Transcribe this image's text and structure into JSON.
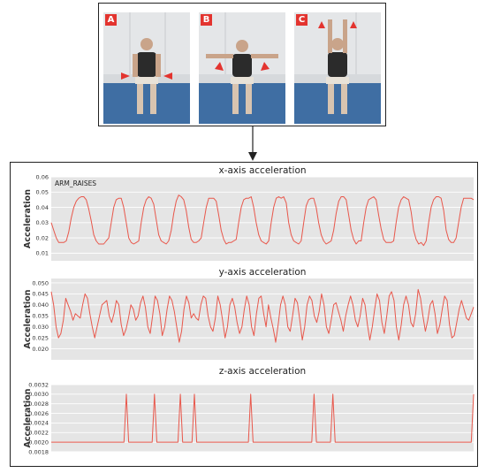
{
  "panels": [
    {
      "label": "A",
      "motion": "arms down"
    },
    {
      "label": "B",
      "motion": "arms sideways"
    },
    {
      "label": "C",
      "motion": "arms up"
    }
  ],
  "colors": {
    "line": "#e8574b",
    "plot_bg": "#e5e5e5",
    "grid": "#ffffff",
    "badge": "#e3342f"
  },
  "chart_data": [
    {
      "type": "line",
      "title": "x-axis acceleration",
      "ylabel": "Acceleration",
      "annotation": "ARM_RAISES",
      "ylim": [
        0.005,
        0.06
      ],
      "yticks": [
        "0.01",
        "0.02",
        "0.03",
        "0.04",
        "0.05",
        "0.06"
      ],
      "grid": true,
      "series": [
        {
          "values": [
            0.03,
            0.025,
            0.02,
            0.017,
            0.017,
            0.017,
            0.018,
            0.024,
            0.033,
            0.04,
            0.044,
            0.046,
            0.047,
            0.047,
            0.045,
            0.039,
            0.031,
            0.022,
            0.018,
            0.016,
            0.016,
            0.016,
            0.018,
            0.02,
            0.03,
            0.04,
            0.045,
            0.046,
            0.046,
            0.04,
            0.03,
            0.02,
            0.017,
            0.016,
            0.017,
            0.018,
            0.03,
            0.04,
            0.045,
            0.047,
            0.046,
            0.042,
            0.032,
            0.022,
            0.018,
            0.017,
            0.016,
            0.018,
            0.025,
            0.036,
            0.044,
            0.048,
            0.047,
            0.045,
            0.038,
            0.027,
            0.019,
            0.017,
            0.017,
            0.018,
            0.02,
            0.03,
            0.04,
            0.046,
            0.046,
            0.046,
            0.044,
            0.035,
            0.025,
            0.019,
            0.016,
            0.017,
            0.017,
            0.018,
            0.019,
            0.03,
            0.04,
            0.045,
            0.046,
            0.046,
            0.047,
            0.04,
            0.03,
            0.022,
            0.018,
            0.017,
            0.016,
            0.018,
            0.03,
            0.04,
            0.046,
            0.047,
            0.046,
            0.047,
            0.043,
            0.03,
            0.022,
            0.018,
            0.017,
            0.016,
            0.018,
            0.03,
            0.041,
            0.045,
            0.046,
            0.046,
            0.04,
            0.03,
            0.022,
            0.018,
            0.016,
            0.017,
            0.018,
            0.025,
            0.036,
            0.044,
            0.047,
            0.047,
            0.045,
            0.035,
            0.025,
            0.019,
            0.016,
            0.018,
            0.018,
            0.03,
            0.04,
            0.045,
            0.046,
            0.047,
            0.045,
            0.035,
            0.026,
            0.019,
            0.017,
            0.017,
            0.017,
            0.018,
            0.03,
            0.04,
            0.045,
            0.047,
            0.046,
            0.045,
            0.037,
            0.025,
            0.019,
            0.016,
            0.017,
            0.015,
            0.018,
            0.03,
            0.04,
            0.045,
            0.047,
            0.047,
            0.046,
            0.038,
            0.025,
            0.019,
            0.017,
            0.017,
            0.02,
            0.03,
            0.04,
            0.046,
            0.046,
            0.046,
            0.046,
            0.045
          ]
        }
      ]
    },
    {
      "type": "line",
      "title": "y-axis acceleration",
      "ylabel": "Acceleration",
      "ylim": [
        0.015,
        0.052
      ],
      "yticks": [
        "0.020",
        "0.025",
        "0.030",
        "0.035",
        "0.040",
        "0.045",
        "0.050"
      ],
      "grid": true,
      "series": [
        {
          "values": [
            0.046,
            0.04,
            0.03,
            0.025,
            0.027,
            0.033,
            0.043,
            0.04,
            0.037,
            0.033,
            0.036,
            0.035,
            0.034,
            0.04,
            0.045,
            0.043,
            0.036,
            0.03,
            0.025,
            0.03,
            0.035,
            0.04,
            0.041,
            0.042,
            0.035,
            0.032,
            0.036,
            0.042,
            0.04,
            0.031,
            0.026,
            0.029,
            0.034,
            0.04,
            0.038,
            0.033,
            0.035,
            0.041,
            0.044,
            0.039,
            0.03,
            0.027,
            0.035,
            0.044,
            0.042,
            0.036,
            0.026,
            0.03,
            0.038,
            0.044,
            0.042,
            0.037,
            0.03,
            0.023,
            0.028,
            0.038,
            0.044,
            0.041,
            0.034,
            0.036,
            0.034,
            0.033,
            0.04,
            0.044,
            0.043,
            0.035,
            0.03,
            0.028,
            0.034,
            0.044,
            0.04,
            0.033,
            0.025,
            0.03,
            0.04,
            0.043,
            0.039,
            0.032,
            0.027,
            0.03,
            0.038,
            0.044,
            0.04,
            0.03,
            0.026,
            0.036,
            0.043,
            0.044,
            0.036,
            0.03,
            0.04,
            0.034,
            0.029,
            0.023,
            0.031,
            0.04,
            0.044,
            0.04,
            0.03,
            0.028,
            0.035,
            0.043,
            0.041,
            0.033,
            0.024,
            0.03,
            0.04,
            0.044,
            0.042,
            0.035,
            0.032,
            0.037,
            0.045,
            0.04,
            0.03,
            0.027,
            0.033,
            0.04,
            0.041,
            0.037,
            0.033,
            0.028,
            0.035,
            0.04,
            0.044,
            0.04,
            0.033,
            0.03,
            0.035,
            0.043,
            0.04,
            0.031,
            0.024,
            0.03,
            0.038,
            0.045,
            0.042,
            0.032,
            0.027,
            0.035,
            0.044,
            0.046,
            0.042,
            0.03,
            0.024,
            0.031,
            0.04,
            0.044,
            0.04,
            0.032,
            0.03,
            0.036,
            0.047,
            0.043,
            0.035,
            0.028,
            0.033,
            0.04,
            0.042,
            0.036,
            0.027,
            0.031,
            0.038,
            0.044,
            0.042,
            0.031,
            0.025,
            0.026,
            0.032,
            0.038,
            0.042,
            0.038,
            0.034,
            0.033,
            0.036,
            0.039
          ]
        }
      ]
    },
    {
      "type": "line",
      "title": "z-axis acceleration",
      "ylabel": "Acceleration",
      "ylim": [
        0.0018,
        0.0032
      ],
      "yticks": [
        "0.0018",
        "0.0020",
        "0.0022",
        "0.0024",
        "0.0026",
        "0.0028",
        "0.0030",
        "0.0032"
      ],
      "grid": true,
      "series": [
        {
          "values": [
            0.002,
            0.002,
            0.002,
            0.002,
            0.002,
            0.002,
            0.002,
            0.002,
            0.002,
            0.002,
            0.002,
            0.002,
            0.002,
            0.002,
            0.002,
            0.002,
            0.002,
            0.002,
            0.002,
            0.002,
            0.002,
            0.002,
            0.002,
            0.002,
            0.002,
            0.002,
            0.002,
            0.002,
            0.002,
            0.002,
            0.002,
            0.002,
            0.003,
            0.002,
            0.002,
            0.002,
            0.002,
            0.002,
            0.002,
            0.002,
            0.002,
            0.002,
            0.002,
            0.002,
            0.003,
            0.002,
            0.002,
            0.002,
            0.002,
            0.002,
            0.002,
            0.002,
            0.002,
            0.002,
            0.002,
            0.003,
            0.002,
            0.002,
            0.002,
            0.002,
            0.002,
            0.003,
            0.002,
            0.002,
            0.002,
            0.002,
            0.002,
            0.002,
            0.002,
            0.002,
            0.002,
            0.002,
            0.002,
            0.002,
            0.002,
            0.002,
            0.002,
            0.002,
            0.002,
            0.002,
            0.002,
            0.002,
            0.002,
            0.002,
            0.002,
            0.003,
            0.002,
            0.002,
            0.002,
            0.002,
            0.002,
            0.002,
            0.002,
            0.002,
            0.002,
            0.002,
            0.002,
            0.002,
            0.002,
            0.002,
            0.002,
            0.002,
            0.002,
            0.002,
            0.002,
            0.002,
            0.002,
            0.002,
            0.002,
            0.002,
            0.002,
            0.002,
            0.003,
            0.002,
            0.002,
            0.002,
            0.002,
            0.002,
            0.002,
            0.002,
            0.003,
            0.002,
            0.002,
            0.002,
            0.002,
            0.002,
            0.002,
            0.002,
            0.002,
            0.002,
            0.002,
            0.002,
            0.002,
            0.002,
            0.002,
            0.002,
            0.002,
            0.002,
            0.002,
            0.002,
            0.002,
            0.002,
            0.002,
            0.002,
            0.002,
            0.002,
            0.002,
            0.002,
            0.002,
            0.002,
            0.002,
            0.002,
            0.002,
            0.002,
            0.002,
            0.002,
            0.002,
            0.002,
            0.002,
            0.002,
            0.002,
            0.002,
            0.002,
            0.002,
            0.002,
            0.002,
            0.002,
            0.002,
            0.002,
            0.002,
            0.002,
            0.002,
            0.002,
            0.002,
            0.002,
            0.002,
            0.002,
            0.002,
            0.002,
            0.002,
            0.003
          ]
        }
      ]
    }
  ]
}
